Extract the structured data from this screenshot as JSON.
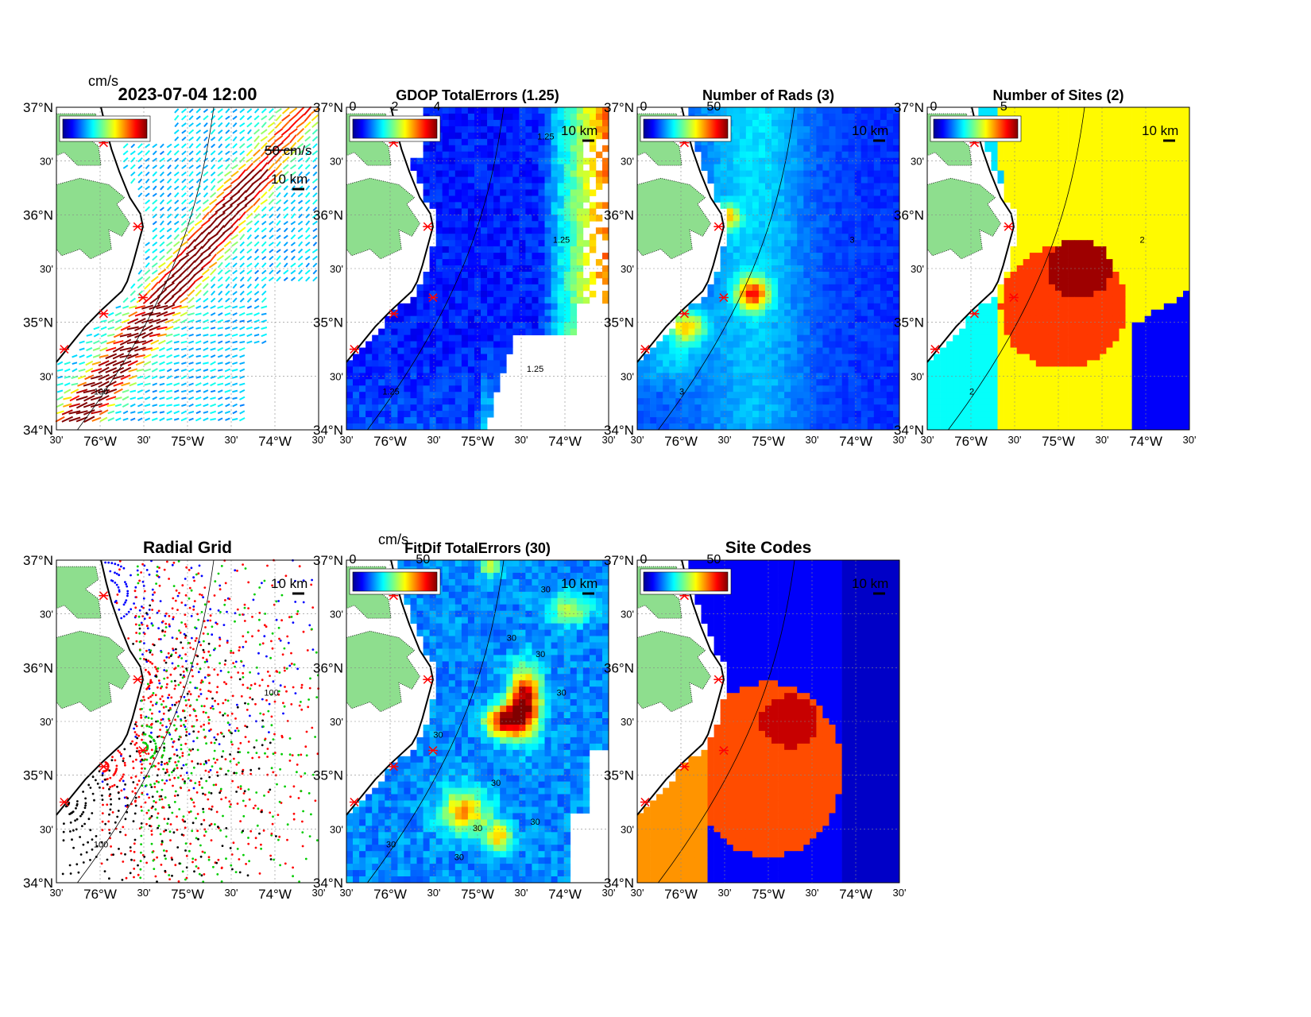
{
  "figure": {
    "timestamp": "2023-07-04 12:00",
    "tick_labels": {
      "lat": [
        "34°N",
        "35°N",
        "36°N",
        "37°N"
      ],
      "lon": [
        "76°W",
        "75°W",
        "74°W"
      ],
      "minute": "30'"
    },
    "scale_bar_label": "10 km",
    "colors": {
      "land": "#8ede8e",
      "ocean_bg": "#ffffff",
      "site_marker": "#ff0000",
      "coast": "#000000"
    }
  },
  "chart_data": [
    {
      "id": "surface-currents",
      "type": "quiver",
      "title": "2023-07-04 12:00",
      "colorbar": {
        "unit": "cm/s",
        "tick_labels": []
      },
      "reference_vector_label": "50 cm/s",
      "scale_label": "10 km",
      "contour_labels": [
        "100"
      ],
      "xlim": [
        -76.5,
        -73.5
      ],
      "ylim": [
        34,
        37
      ]
    },
    {
      "id": "gdop-total-errors",
      "type": "heatmap",
      "title": "GDOP TotalErrors (1.25)",
      "colorbar": {
        "tick_labels": [
          "0",
          "2",
          "4"
        ],
        "range": [
          0,
          4
        ]
      },
      "contour_level": "1.25",
      "contour_labels": [
        "1.25",
        "1.25",
        "1.25",
        "1.25"
      ],
      "scale_label": "10 km",
      "xlim": [
        -76.5,
        -73.5
      ],
      "ylim": [
        34,
        37
      ]
    },
    {
      "id": "number-of-rads",
      "type": "heatmap",
      "title": "Number of Rads (3)",
      "colorbar": {
        "tick_labels": [
          "0",
          "50"
        ],
        "range": [
          0,
          60
        ]
      },
      "contour_labels": [
        "3",
        "3"
      ],
      "scale_label": "10 km",
      "xlim": [
        -76.5,
        -73.5
      ],
      "ylim": [
        34,
        37
      ]
    },
    {
      "id": "number-of-sites",
      "type": "heatmap",
      "title": "Number of Sites (2)",
      "colorbar": {
        "tick_labels": [
          "0",
          "5"
        ],
        "range": [
          0,
          6
        ]
      },
      "contour_labels": [
        "2",
        "2"
      ],
      "scale_label": "10 km",
      "xlim": [
        -76.5,
        -73.5
      ],
      "ylim": [
        34,
        37
      ]
    },
    {
      "id": "radial-grid",
      "type": "scatter",
      "title": "Radial Grid",
      "scale_label": "10 km",
      "contour_labels": [
        "100",
        "100"
      ],
      "series_colors": [
        "#0000ff",
        "#ff0000",
        "#00cc00",
        "#000000"
      ],
      "xlim": [
        -76.5,
        -73.5
      ],
      "ylim": [
        34,
        37
      ]
    },
    {
      "id": "fitdif-total-errors",
      "type": "heatmap",
      "title": "FitDif TotalErrors (30)",
      "colorbar": {
        "unit": "cm/s",
        "tick_labels": [
          "0",
          "50"
        ],
        "range": [
          0,
          60
        ]
      },
      "contour_level": "30",
      "contour_labels": [
        "30",
        "30",
        "30",
        "30",
        "30",
        "30",
        "30",
        "30",
        "30",
        "30"
      ],
      "scale_label": "10 km",
      "xlim": [
        -76.5,
        -73.5
      ],
      "ylim": [
        34,
        37
      ]
    },
    {
      "id": "site-codes",
      "type": "heatmap",
      "title": "Site Codes",
      "colorbar": {
        "tick_labels": [
          "0",
          "50"
        ],
        "range": [
          0,
          60
        ]
      },
      "scale_label": "10 km",
      "xlim": [
        -76.5,
        -73.5
      ],
      "ylim": [
        34,
        37
      ]
    }
  ]
}
